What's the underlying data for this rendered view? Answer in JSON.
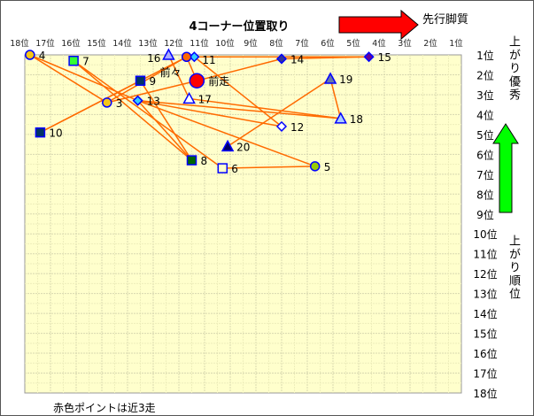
{
  "chart_data": {
    "type": "scatter",
    "title": "4コーナー位置取り",
    "xlabel": "4コーナー位置取り",
    "ylabel": "上がり順位",
    "x_direction_label": "先行脚質",
    "y_direction_label": "上がり優秀",
    "y_axis_side_label": "上がり順位",
    "footnote": "赤色ポイントは近3走",
    "xlim": [
      18,
      1
    ],
    "ylim": [
      1,
      18
    ],
    "grid": true,
    "x_ticks": [
      "18位",
      "17位",
      "16位",
      "15位",
      "14位",
      "13位",
      "12位",
      "11位",
      "10位",
      "9位",
      "8位",
      "7位",
      "6位",
      "5位",
      "4位",
      "3位",
      "2位",
      "1位"
    ],
    "y_ticks": [
      "1位",
      "2位",
      "3位",
      "4位",
      "5位",
      "6位",
      "7位",
      "8位",
      "9位",
      "10位",
      "11位",
      "12位",
      "13位",
      "14位",
      "15位",
      "16位",
      "17位",
      "18位"
    ],
    "points": [
      {
        "label": "4",
        "x": 17.8,
        "y": 1.0,
        "shape": "circle",
        "fill": "#f5c518"
      },
      {
        "label": "7",
        "x": 16.1,
        "y": 1.3,
        "shape": "square",
        "fill": "#33ff33"
      },
      {
        "label": "9",
        "x": 13.5,
        "y": 2.3,
        "shape": "square",
        "fill": "#003366"
      },
      {
        "label": "3",
        "x": 14.8,
        "y": 3.4,
        "shape": "circle",
        "fill": "#f5c518"
      },
      {
        "label": "13",
        "x": 13.6,
        "y": 3.3,
        "shape": "diamond",
        "fill": "#33ccff"
      },
      {
        "label": "10",
        "x": 17.4,
        "y": 4.9,
        "shape": "square",
        "fill": "#003366"
      },
      {
        "label": "8",
        "x": 11.5,
        "y": 6.3,
        "shape": "square",
        "fill": "#006600"
      },
      {
        "label": "6",
        "x": 10.3,
        "y": 6.7,
        "shape": "square",
        "fill": "#ffffcc"
      },
      {
        "label": "5",
        "x": 6.7,
        "y": 6.6,
        "shape": "circle",
        "fill": "#99cc00"
      },
      {
        "label": "20",
        "x": 10.1,
        "y": 5.6,
        "shape": "triangle",
        "fill": "#000066"
      },
      {
        "label": "12",
        "x": 8.0,
        "y": 4.6,
        "shape": "diamond",
        "fill": "#ffffff"
      },
      {
        "label": "18",
        "x": 5.7,
        "y": 4.2,
        "shape": "triangle",
        "fill": "#aaccff"
      },
      {
        "label": "19",
        "x": 6.1,
        "y": 2.2,
        "shape": "triangle",
        "fill": "#6677aa"
      },
      {
        "label": "17",
        "x": 11.6,
        "y": 3.2,
        "shape": "triangle",
        "fill": "#ffffff"
      },
      {
        "label": "16",
        "x": 12.4,
        "y": 1.0,
        "shape": "triangle",
        "fill": "#aaaaff"
      },
      {
        "label": "11",
        "x": 11.4,
        "y": 1.1,
        "shape": "diamond",
        "fill": "#33ccff"
      },
      {
        "label": "前々",
        "x": 11.7,
        "y": 1.1,
        "shape": "circle",
        "fill": "#ff6600"
      },
      {
        "label": "前走",
        "x": 11.3,
        "y": 2.3,
        "shape": "circle",
        "fill": "#ff0000",
        "big": true
      },
      {
        "label": "14",
        "x": 8.0,
        "y": 1.2,
        "shape": "diamond",
        "fill": "#333399"
      },
      {
        "label": "15",
        "x": 4.6,
        "y": 1.1,
        "shape": "diamond",
        "fill": "#660099"
      }
    ],
    "connections": [
      [
        "4",
        "3"
      ],
      [
        "4",
        "13"
      ],
      [
        "13",
        "8"
      ],
      [
        "7",
        "8"
      ],
      [
        "7",
        "6"
      ],
      [
        "3",
        "前々"
      ],
      [
        "10",
        "前々"
      ],
      [
        "10",
        "9"
      ],
      [
        "9",
        "8"
      ],
      [
        "3",
        "前走"
      ],
      [
        "13",
        "12"
      ],
      [
        "13",
        "18"
      ],
      [
        "13",
        "5"
      ],
      [
        "17",
        "18"
      ],
      [
        "16",
        "17"
      ],
      [
        "前々",
        "前走"
      ],
      [
        "11",
        "12"
      ],
      [
        "前々",
        "15"
      ],
      [
        "14",
        "15"
      ],
      [
        "前走",
        "14"
      ],
      [
        "19",
        "18"
      ],
      [
        "19",
        "20"
      ],
      [
        "6",
        "5"
      ]
    ]
  }
}
